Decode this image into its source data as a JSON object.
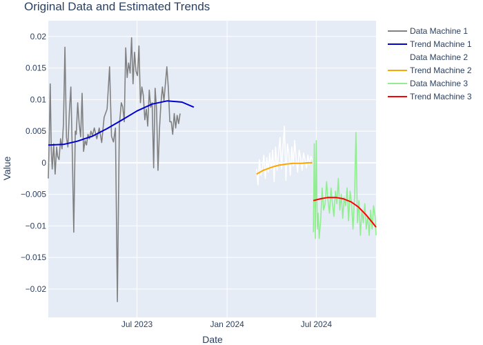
{
  "chart_data": {
    "type": "line",
    "title": "Original Data and Estimated Trends",
    "xlabel": "Date",
    "ylabel": "Value",
    "x_axis_type": "date",
    "xlim": [
      "2023-01-01",
      "2024-10-31"
    ],
    "ylim": [
      -0.0245,
      0.0225
    ],
    "x_ticks": [
      {
        "value": "2023-07-01",
        "label": "Jul 2023"
      },
      {
        "value": "2024-01-01",
        "label": "Jan 2024"
      },
      {
        "value": "2024-07-01",
        "label": "Jul 2024"
      }
    ],
    "y_ticks": [
      {
        "value": 0.02,
        "label": "0.02"
      },
      {
        "value": 0.015,
        "label": "0.015"
      },
      {
        "value": 0.01,
        "label": "0.01"
      },
      {
        "value": 0.005,
        "label": "0.005"
      },
      {
        "value": 0,
        "label": "0"
      },
      {
        "value": -0.005,
        "label": "−0.005"
      },
      {
        "value": -0.01,
        "label": "−0.01"
      },
      {
        "value": -0.015,
        "label": "−0.015"
      },
      {
        "value": -0.02,
        "label": "−0.02"
      }
    ],
    "grid": true,
    "plot_background": "#e5ecf6",
    "legend_position": "top-right",
    "series": [
      {
        "name": "Data Machine 1",
        "color": "#808080",
        "x": [
          "2023-01-01",
          "2023-01-03",
          "2023-01-05",
          "2023-01-07",
          "2023-01-09",
          "2023-01-12",
          "2023-01-15",
          "2023-01-18",
          "2023-01-20",
          "2023-01-23",
          "2023-01-26",
          "2023-01-29",
          "2023-02-01",
          "2023-02-04",
          "2023-02-07",
          "2023-02-10",
          "2023-02-13",
          "2023-02-16",
          "2023-02-19",
          "2023-02-22",
          "2023-02-25",
          "2023-02-27",
          "2023-03-02",
          "2023-03-05",
          "2023-03-08",
          "2023-03-11",
          "2023-03-14",
          "2023-03-17",
          "2023-03-20",
          "2023-03-23",
          "2023-03-26",
          "2023-03-29",
          "2023-04-01",
          "2023-04-05",
          "2023-04-10",
          "2023-04-15",
          "2023-04-20",
          "2023-04-25",
          "2023-05-01",
          "2023-05-06",
          "2023-05-10",
          "2023-05-14",
          "2023-05-18",
          "2023-05-22",
          "2023-05-26",
          "2023-05-30",
          "2023-06-02",
          "2023-06-05",
          "2023-06-08",
          "2023-06-11",
          "2023-06-14",
          "2023-06-17",
          "2023-06-20",
          "2023-06-23",
          "2023-06-26",
          "2023-06-29",
          "2023-07-02",
          "2023-07-05",
          "2023-07-08",
          "2023-07-11",
          "2023-07-14",
          "2023-07-17",
          "2023-07-20",
          "2023-07-23",
          "2023-07-26",
          "2023-07-29",
          "2023-08-01",
          "2023-08-04",
          "2023-08-07",
          "2023-08-10",
          "2023-08-13",
          "2023-08-16",
          "2023-08-19",
          "2023-08-22",
          "2023-08-25",
          "2023-08-28",
          "2023-08-31",
          "2023-09-03",
          "2023-09-06",
          "2023-09-09",
          "2023-09-12",
          "2023-09-15",
          "2023-09-18",
          "2023-09-21",
          "2023-09-24",
          "2023-09-27"
        ],
        "y": [
          -0.0025,
          0.004,
          0.0125,
          0.002,
          -0.001,
          0.003,
          -0.0018,
          0.0025,
          0.001,
          0.0005,
          0.0038,
          0.0022,
          0.0062,
          0.0183,
          0.004,
          0.0025,
          0.008,
          0.012,
          0.0015,
          -0.011,
          0.005,
          0.0045,
          0.0095,
          0.0062,
          0.0041,
          0.011,
          0.0018,
          0.0035,
          0.0028,
          0.0045,
          0.0038,
          0.005,
          0.0043,
          0.0055,
          0.0038,
          0.0055,
          0.0032,
          0.0072,
          0.0085,
          0.0152,
          0.0042,
          0.0033,
          0.0055,
          -0.022,
          0.006,
          0.0095,
          0.0088,
          0.0065,
          0.0182,
          0.0135,
          0.0158,
          0.0142,
          0.0198,
          0.0125,
          0.0175,
          0.0145,
          0.0138,
          0.0185,
          0.0095,
          0.012,
          0.0107,
          0.0068,
          0.0085,
          0.0058,
          0.0115,
          0.0088,
          0.0095,
          -0.0008,
          0.0118,
          0.0085,
          -0.0012,
          0.0055,
          0.0095,
          0.012,
          0.0098,
          0.0125,
          0.0152,
          0.0118,
          0.0065,
          0.0065,
          0.0045,
          0.0078,
          0.0055,
          0.0075,
          0.0062,
          0.0078
        ]
      },
      {
        "name": "Trend Machine 1",
        "color": "#0000cd",
        "x": [
          "2023-01-01",
          "2023-02-01",
          "2023-03-01",
          "2023-04-01",
          "2023-05-01",
          "2023-06-01",
          "2023-07-01",
          "2023-08-01",
          "2023-09-01",
          "2023-10-01",
          "2023-10-25"
        ],
        "y": [
          0.0028,
          0.0029,
          0.0034,
          0.0042,
          0.0054,
          0.0068,
          0.0082,
          0.0093,
          0.0098,
          0.0096,
          0.0088
        ]
      },
      {
        "name": "Data Machine 2",
        "color": "#ffffff",
        "x": [
          "2024-03-01",
          "2024-03-04",
          "2024-03-07",
          "2024-03-10",
          "2024-03-13",
          "2024-03-16",
          "2024-03-19",
          "2024-03-22",
          "2024-03-25",
          "2024-03-28",
          "2024-03-31",
          "2024-04-03",
          "2024-04-06",
          "2024-04-09",
          "2024-04-12",
          "2024-04-15",
          "2024-04-18",
          "2024-04-21",
          "2024-04-24",
          "2024-04-27",
          "2024-04-30",
          "2024-05-03",
          "2024-05-06",
          "2024-05-09",
          "2024-05-12",
          "2024-05-15",
          "2024-05-18",
          "2024-05-21",
          "2024-05-24",
          "2024-05-27",
          "2024-05-30",
          "2024-06-02",
          "2024-06-05",
          "2024-06-08",
          "2024-06-11",
          "2024-06-14",
          "2024-06-17",
          "2024-06-20",
          "2024-06-23"
        ],
        "y": [
          -0.001,
          -0.0035,
          0.0005,
          -0.002,
          -0.0008,
          0.0012,
          -0.0025,
          0.0008,
          -0.0015,
          0.0015,
          -0.001,
          0.002,
          -0.003,
          0.0025,
          -0.0012,
          0.0015,
          0.004,
          -0.001,
          0.0025,
          0.0058,
          -0.0028,
          0.003,
          0.0015,
          -0.002,
          0.0025,
          -0.0005,
          0.0035,
          0.0005,
          -0.0015,
          0.002,
          0.0008,
          -0.0012,
          0.0015,
          0.0005,
          -0.0008,
          0.0012,
          -0.0003,
          0.001,
          0.0005
        ]
      },
      {
        "name": "Trend Machine 2",
        "color": "#ffa500",
        "x": [
          "2024-03-01",
          "2024-03-15",
          "2024-04-01",
          "2024-04-15",
          "2024-05-01",
          "2024-05-15",
          "2024-06-01",
          "2024-06-15",
          "2024-06-23"
        ],
        "y": [
          -0.0018,
          -0.0012,
          -0.0007,
          -0.0004,
          -0.0002,
          -0.0001,
          -0.0001,
          0.0,
          0.0
        ]
      },
      {
        "name": "Data Machine 3",
        "color": "#90ee90",
        "x": [
          "2024-06-25",
          "2024-06-27",
          "2024-06-29",
          "2024-07-01",
          "2024-07-03",
          "2024-07-05",
          "2024-07-07",
          "2024-07-10",
          "2024-07-13",
          "2024-07-16",
          "2024-07-19",
          "2024-07-22",
          "2024-07-25",
          "2024-07-28",
          "2024-07-31",
          "2024-08-03",
          "2024-08-06",
          "2024-08-09",
          "2024-08-12",
          "2024-08-15",
          "2024-08-18",
          "2024-08-21",
          "2024-08-24",
          "2024-08-27",
          "2024-08-30",
          "2024-09-02",
          "2024-09-05",
          "2024-09-08",
          "2024-09-11",
          "2024-09-14",
          "2024-09-17",
          "2024-09-20",
          "2024-09-23",
          "2024-09-26",
          "2024-09-29",
          "2024-10-02",
          "2024-10-05",
          "2024-10-08",
          "2024-10-11",
          "2024-10-14",
          "2024-10-17",
          "2024-10-20",
          "2024-10-23",
          "2024-10-26",
          "2024-10-29",
          "2024-10-31"
        ],
        "y": [
          -0.011,
          0.003,
          -0.012,
          0.0035,
          -0.0105,
          -0.008,
          -0.012,
          -0.009,
          -0.004,
          -0.0075,
          -0.0065,
          -0.003,
          -0.006,
          -0.008,
          -0.004,
          -0.0065,
          -0.0085,
          -0.0045,
          -0.0065,
          -0.0025,
          -0.0075,
          -0.005,
          -0.0088,
          -0.0055,
          -0.0068,
          -0.004,
          -0.0092,
          -0.0045,
          -0.0065,
          -0.0105,
          -0.0055,
          0.0048,
          -0.0095,
          -0.006,
          -0.0115,
          -0.0075,
          -0.0095,
          -0.0065,
          -0.0105,
          -0.0085,
          -0.0115,
          -0.0075,
          -0.0105,
          -0.0068,
          -0.0085,
          -0.0115
        ]
      },
      {
        "name": "Trend Machine 3",
        "color": "#ff0000",
        "x": [
          "2024-06-25",
          "2024-07-10",
          "2024-07-25",
          "2024-08-10",
          "2024-08-25",
          "2024-09-10",
          "2024-09-25",
          "2024-10-10",
          "2024-10-25",
          "2024-10-31"
        ],
        "y": [
          -0.006,
          -0.0057,
          -0.0055,
          -0.0055,
          -0.0057,
          -0.0062,
          -0.007,
          -0.0082,
          -0.0096,
          -0.0102
        ]
      }
    ]
  }
}
